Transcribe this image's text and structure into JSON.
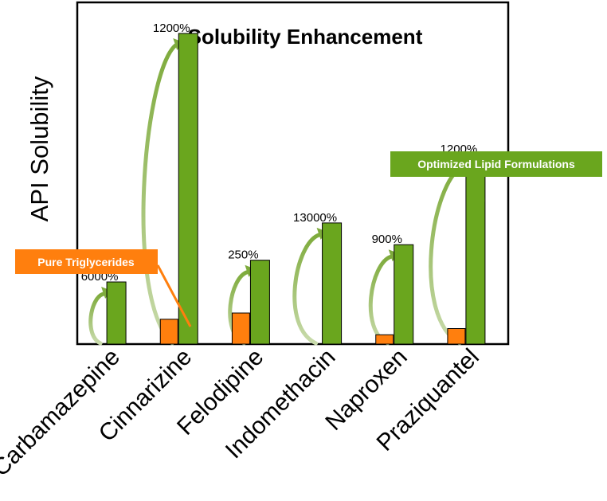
{
  "chart_data": {
    "type": "bar",
    "title": "Solubility Enhancement",
    "ylabel": "API Solubility",
    "xlabel": "",
    "categories": [
      "Carbamazepine",
      "Cinnarizine",
      "Felodipine",
      "Indomethacin",
      "Naproxen",
      "Praziquantel"
    ],
    "series": [
      {
        "name": "Pure Triglycerides",
        "color": "#ff7f0e",
        "values": [
          0,
          8,
          10,
          0,
          3,
          5
        ]
      },
      {
        "name": "Optimized Lipid Formulations",
        "color": "#6aa61e",
        "values": [
          20,
          100,
          27,
          39,
          32,
          61
        ]
      }
    ],
    "annotations": [
      "6000%",
      "1200%",
      "250%",
      "13000%",
      "900%",
      "1200%"
    ],
    "ylim": [
      0,
      110
    ],
    "grid": false,
    "legend": "callouts"
  }
}
